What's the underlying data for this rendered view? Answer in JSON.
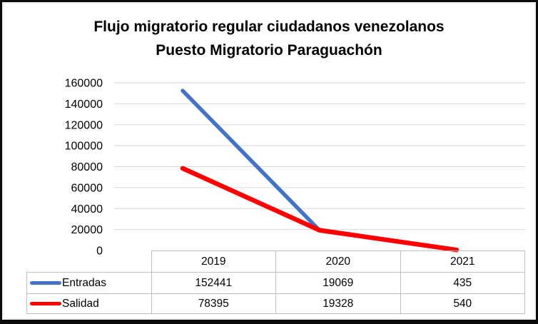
{
  "title": {
    "line1": "Flujo migratorio regular ciudadanos venezolanos",
    "line2": "Puesto Migratorio Paraguachón"
  },
  "chart_data": {
    "type": "line",
    "title": "Flujo migratorio regular ciudadanos venezolanos Puesto Migratorio Paraguachón",
    "categories": [
      "2019",
      "2020",
      "2021"
    ],
    "series": [
      {
        "name": "Entradas",
        "values": [
          152441,
          19069,
          435
        ],
        "color": "#4472C4"
      },
      {
        "name": "Salidad",
        "values": [
          78395,
          19328,
          540
        ],
        "color": "#FF0000"
      }
    ],
    "xlabel": "",
    "ylabel": "",
    "ylim": [
      0,
      160000
    ],
    "yticks": [
      160000,
      140000,
      120000,
      100000,
      80000,
      60000,
      40000,
      20000,
      0
    ],
    "grid": true,
    "gridline_color": "#D9D9D9",
    "tick_label_color": "#000000",
    "legend_position": "data-table-left",
    "data_table_shown": true,
    "table_border_color": "#BFBFBF"
  }
}
